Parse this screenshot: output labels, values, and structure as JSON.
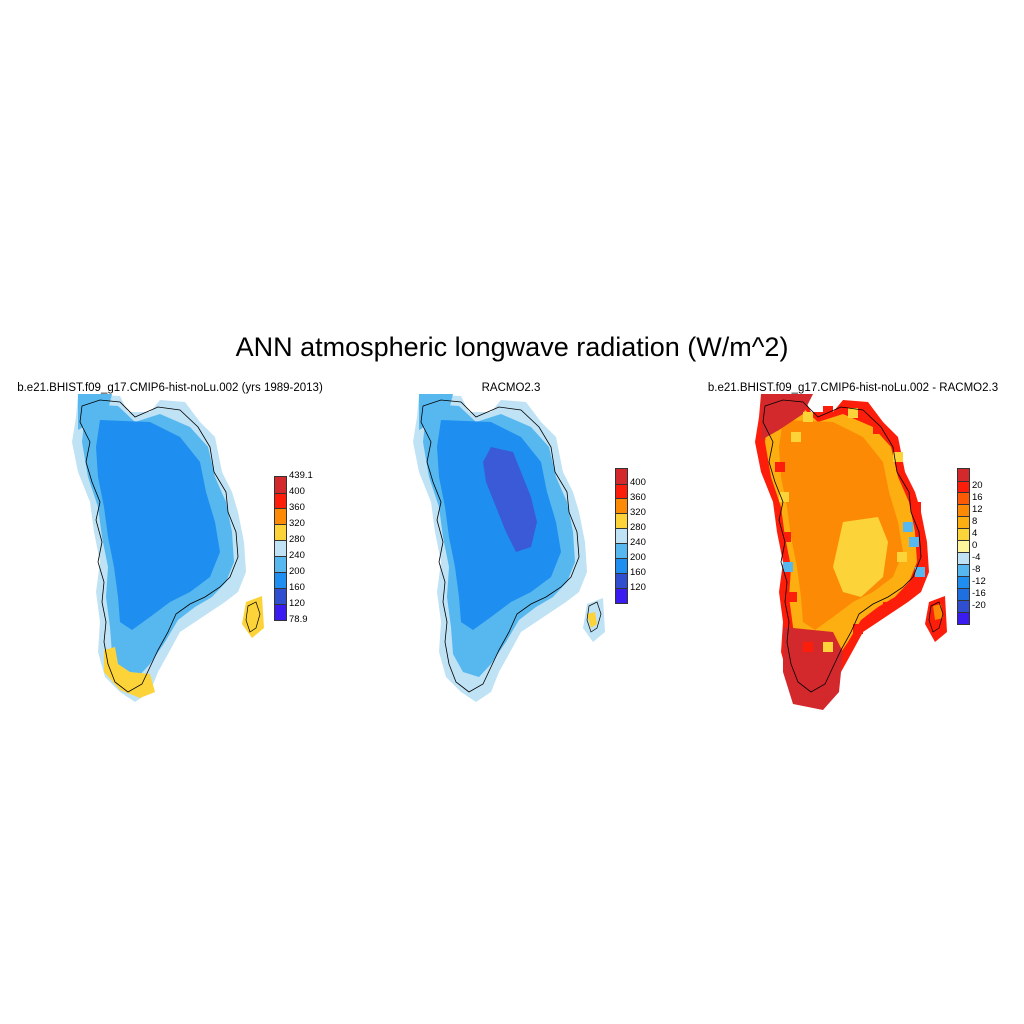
{
  "title": "ANN atmospheric longwave radiation (W/m^2)",
  "panels": [
    {
      "title": "b.e21.BHIST.f09_g17.CMIP6-hist-noLu.002 (yrs 1989-2013)",
      "colorbar": {
        "colors": [
          "#3a1bf0",
          "#2f4fd0",
          "#1e8ef0",
          "#57b8ef",
          "#bfe2f5",
          "#fdd33a",
          "#fd8a04",
          "#fc1d0a",
          "#d3292d"
        ],
        "labels": [
          "78.9",
          "120",
          "160",
          "200",
          "240",
          "280",
          "320",
          "360",
          "400",
          "439.1"
        ]
      },
      "map": {
        "type": "single",
        "interior": "#1e8ef0",
        "edge": "#57b8ef",
        "rim": "#bfe2f5",
        "warm": "#fdd33a"
      }
    },
    {
      "title": "RACMO2.3",
      "colorbar": {
        "colors": [
          "#3a1bf0",
          "#2f4fd0",
          "#1e8ef0",
          "#57b8ef",
          "#bfe2f5",
          "#fdd33a",
          "#fd8a04",
          "#fc1d0a",
          "#d3292d"
        ],
        "labels": [
          "120",
          "160",
          "200",
          "240",
          "280",
          "320",
          "360",
          "400"
        ]
      },
      "map": {
        "type": "single",
        "interior": "#1e8ef0",
        "edge": "#57b8ef",
        "rim": "#bfe2f5",
        "core": "#3a5ad8",
        "warm": "#fdd33a"
      }
    },
    {
      "title": "b.e21.BHIST.f09_g17.CMIP6-hist-noLu.002 - RACMO2.3",
      "colorbar": {
        "colors": [
          "#3a1bf0",
          "#2f4fd0",
          "#1e6fe0",
          "#1e8ef0",
          "#57b8ef",
          "#bfe2f5",
          "#fff59a",
          "#fdd33a",
          "#fdae10",
          "#fd8a04",
          "#fc5a05",
          "#fc1d0a",
          "#d3292d"
        ],
        "labels": [
          "-20",
          "-16",
          "-12",
          "-8",
          "-4",
          "0",
          "4",
          "8",
          "12",
          "16",
          "20"
        ]
      },
      "map": {
        "type": "diff",
        "interior": "#fd8a04",
        "south": "#fdd33a",
        "edge": "#fc1d0a",
        "tip": "#d3292d",
        "mix": "#fdae10",
        "cool": "#57b8ef"
      }
    }
  ]
}
